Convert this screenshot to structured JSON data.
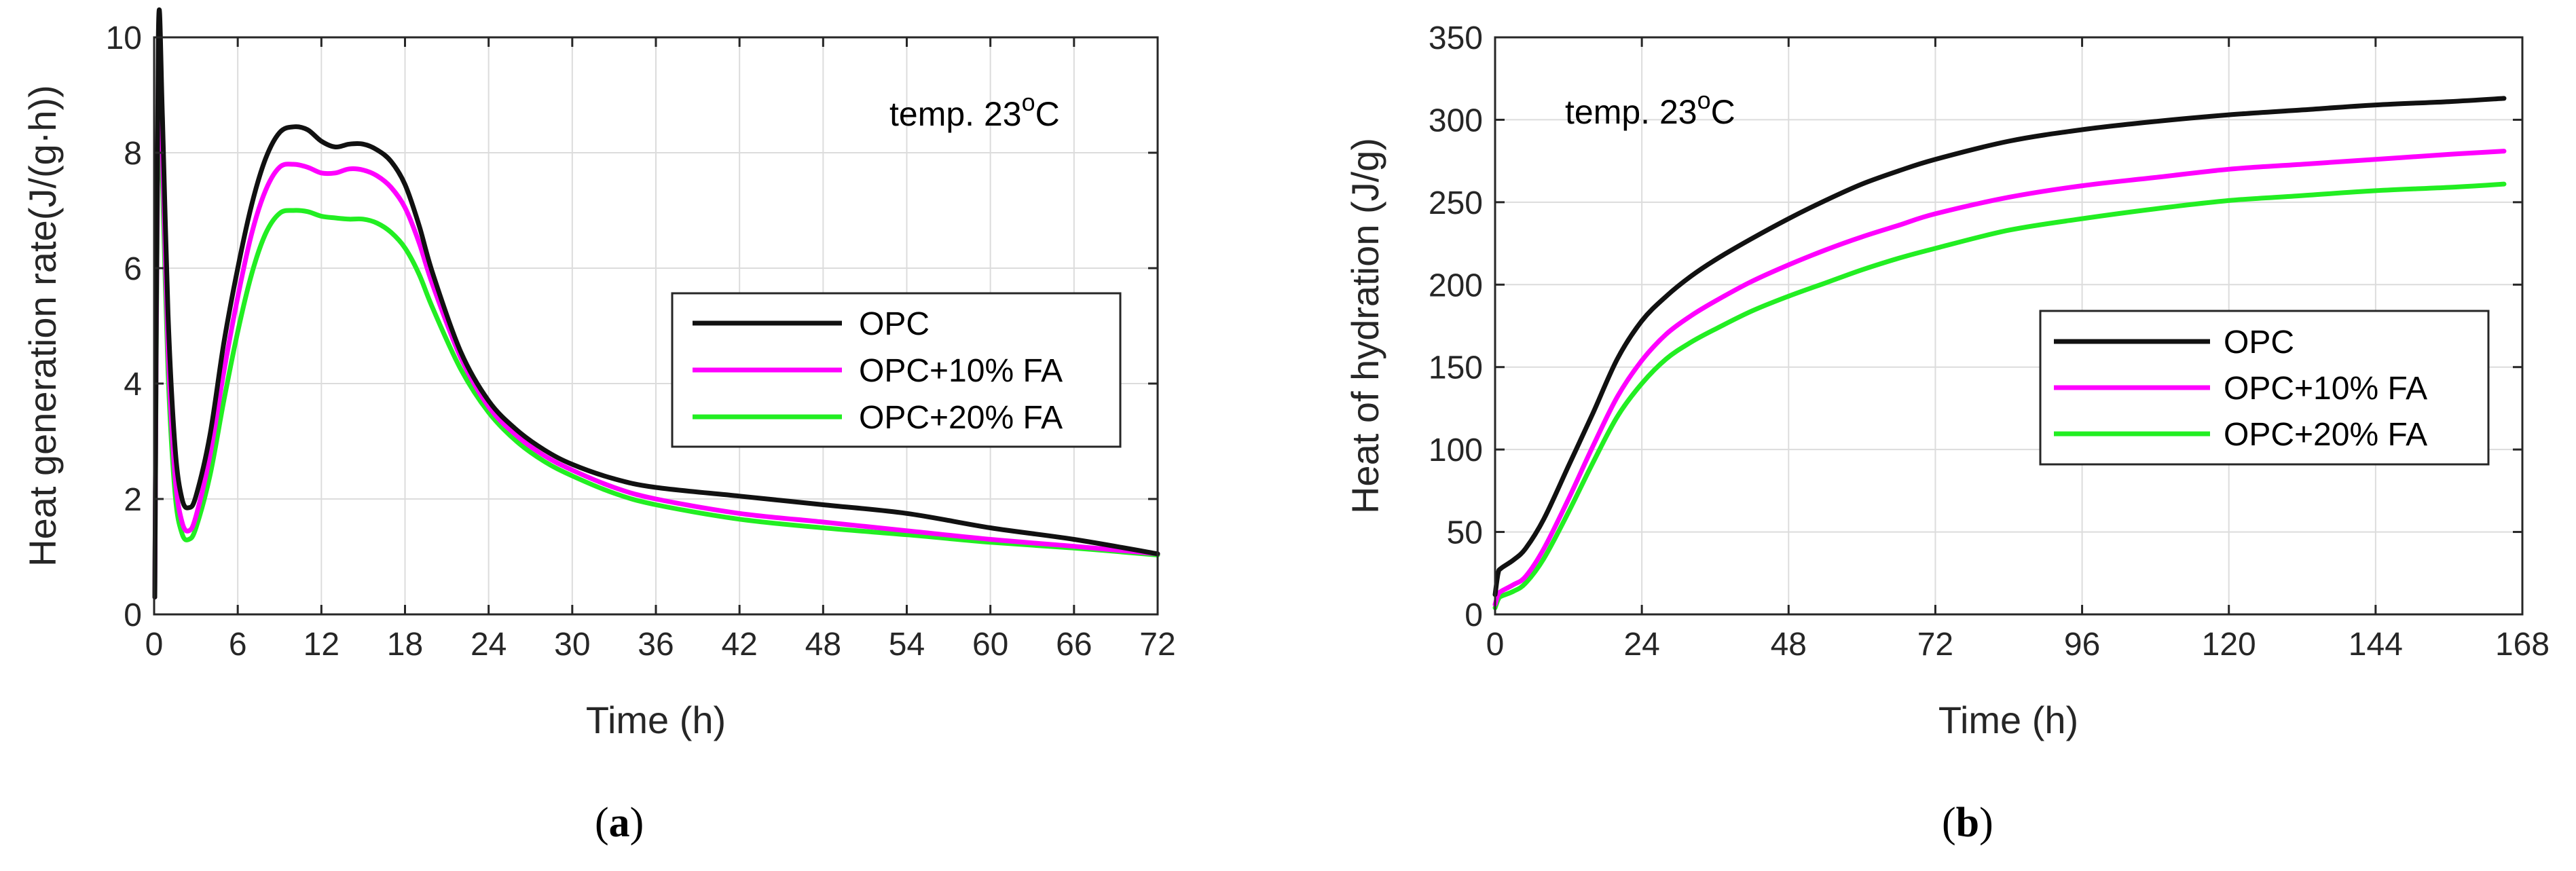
{
  "chart_data": [
    {
      "type": "line",
      "panel_label": "a",
      "caption": {
        "open": "(",
        "letter": "a",
        "close": ")"
      },
      "annotation": {
        "prefix": "temp. 23",
        "sup": "o",
        "suffix": "C"
      },
      "xlabel": "Time (h)",
      "ylabel": "Heat generation rate(J/(g·h))",
      "xlim": [
        0,
        72
      ],
      "ylim": [
        0,
        10
      ],
      "x_ticks": [
        0,
        6,
        12,
        18,
        24,
        30,
        36,
        42,
        48,
        54,
        60,
        66,
        72
      ],
      "y_ticks": [
        0,
        2,
        4,
        6,
        8,
        10
      ],
      "grid": true,
      "legend_position": "center-right",
      "series": [
        {
          "name": "OPC",
          "color": "#111111",
          "x": [
            0.05,
            0.3,
            0.6,
            1.0,
            1.5,
            2.0,
            2.5,
            3.0,
            4.0,
            5.0,
            6.0,
            7.0,
            8.0,
            9.0,
            10.0,
            11.0,
            12.0,
            13.0,
            14.0,
            15.0,
            16.0,
            17.0,
            18.0,
            19.0,
            20.0,
            22.0,
            24.0,
            26.0,
            28.0,
            30.0,
            33.0,
            36.0,
            42.0,
            48.0,
            54.0,
            60.0,
            66.0,
            72.0
          ],
          "y": [
            0.3,
            10.0,
            8.6,
            5.2,
            2.9,
            2.0,
            1.85,
            2.05,
            3.1,
            4.7,
            6.0,
            7.1,
            7.9,
            8.35,
            8.45,
            8.4,
            8.2,
            8.1,
            8.15,
            8.15,
            8.05,
            7.85,
            7.45,
            6.75,
            5.9,
            4.55,
            3.7,
            3.2,
            2.85,
            2.6,
            2.35,
            2.2,
            2.05,
            1.9,
            1.75,
            1.5,
            1.3,
            1.05
          ]
        },
        {
          "name": "OPC+10% FA",
          "color": "#ff00ff",
          "x": [
            0.05,
            0.3,
            0.6,
            1.0,
            1.5,
            2.0,
            2.5,
            3.0,
            4.0,
            5.0,
            6.0,
            7.0,
            8.0,
            9.0,
            10.0,
            11.0,
            12.0,
            13.0,
            14.0,
            15.0,
            16.0,
            17.0,
            18.0,
            19.0,
            20.0,
            22.0,
            24.0,
            26.0,
            28.0,
            30.0,
            33.0,
            36.0,
            42.0,
            48.0,
            54.0,
            60.0,
            66.0,
            72.0
          ],
          "y": [
            0.3,
            9.5,
            8.0,
            4.6,
            2.4,
            1.6,
            1.45,
            1.7,
            2.75,
            4.2,
            5.5,
            6.6,
            7.35,
            7.75,
            7.8,
            7.75,
            7.65,
            7.65,
            7.72,
            7.7,
            7.6,
            7.4,
            7.05,
            6.45,
            5.7,
            4.45,
            3.6,
            3.1,
            2.75,
            2.5,
            2.2,
            2.0,
            1.75,
            1.6,
            1.45,
            1.3,
            1.18,
            1.05
          ]
        },
        {
          "name": "OPC+20% FA",
          "color": "#22ee22",
          "x": [
            0.05,
            0.3,
            0.6,
            1.0,
            1.5,
            2.0,
            2.5,
            3.0,
            4.0,
            5.0,
            6.0,
            7.0,
            8.0,
            9.0,
            10.0,
            11.0,
            12.0,
            13.0,
            14.0,
            15.0,
            16.0,
            17.0,
            18.0,
            19.0,
            20.0,
            22.0,
            24.0,
            26.0,
            28.0,
            30.0,
            33.0,
            36.0,
            42.0,
            48.0,
            54.0,
            60.0,
            66.0,
            72.0
          ],
          "y": [
            0.3,
            9.0,
            7.5,
            4.2,
            2.1,
            1.4,
            1.3,
            1.5,
            2.4,
            3.7,
            4.9,
            5.9,
            6.6,
            6.95,
            7.0,
            6.98,
            6.9,
            6.87,
            6.85,
            6.85,
            6.78,
            6.62,
            6.35,
            5.9,
            5.3,
            4.25,
            3.5,
            3.0,
            2.65,
            2.4,
            2.1,
            1.9,
            1.65,
            1.5,
            1.38,
            1.25,
            1.15,
            1.03
          ]
        }
      ]
    },
    {
      "type": "line",
      "panel_label": "b",
      "caption": {
        "open": "(",
        "letter": "b",
        "close": ")"
      },
      "annotation": {
        "prefix": "temp. 23",
        "sup": "o",
        "suffix": "C"
      },
      "xlabel": "Time (h)",
      "ylabel": "Heat of hydration (J/g)",
      "xlim": [
        0,
        168
      ],
      "ylim": [
        0,
        350
      ],
      "x_ticks": [
        0,
        24,
        48,
        72,
        96,
        120,
        144,
        168
      ],
      "y_ticks": [
        0,
        50,
        100,
        150,
        200,
        250,
        300,
        350
      ],
      "grid": true,
      "legend_position": "center-right",
      "series": [
        {
          "name": "OPC",
          "color": "#111111",
          "x": [
            0,
            0.5,
            1,
            3,
            5,
            8,
            12,
            16,
            20,
            24,
            28,
            32,
            36,
            42,
            48,
            54,
            60,
            66,
            72,
            84,
            96,
            108,
            120,
            132,
            144,
            156,
            165
          ],
          "y": [
            12,
            25,
            28,
            33,
            40,
            58,
            90,
            122,
            155,
            178,
            193,
            205,
            215,
            228,
            240,
            251,
            261,
            269,
            276,
            287,
            294,
            299,
            303,
            306,
            309,
            311,
            313
          ]
        },
        {
          "name": "OPC+10% FA",
          "color": "#ff00ff",
          "x": [
            0,
            0.5,
            1,
            3,
            5,
            8,
            12,
            16,
            20,
            24,
            28,
            32,
            36,
            42,
            48,
            54,
            60,
            66,
            72,
            84,
            96,
            108,
            120,
            132,
            144,
            156,
            165
          ],
          "y": [
            6,
            12,
            14,
            18,
            23,
            40,
            70,
            102,
            132,
            154,
            170,
            181,
            190,
            202,
            212,
            221,
            229,
            236,
            243,
            253,
            260,
            265,
            270,
            273,
            276,
            279,
            281
          ]
        },
        {
          "name": "OPC+20% FA",
          "color": "#22ee22",
          "x": [
            0,
            0.5,
            1,
            3,
            5,
            8,
            12,
            16,
            20,
            24,
            28,
            32,
            36,
            42,
            48,
            54,
            60,
            66,
            72,
            84,
            96,
            108,
            120,
            132,
            144,
            156,
            165
          ],
          "y": [
            4,
            9,
            11,
            14,
            19,
            34,
            62,
            92,
            120,
            140,
            155,
            165,
            173,
            184,
            193,
            201,
            209,
            216,
            222,
            233,
            240,
            246,
            251,
            254,
            257,
            259,
            261
          ]
        }
      ]
    }
  ]
}
